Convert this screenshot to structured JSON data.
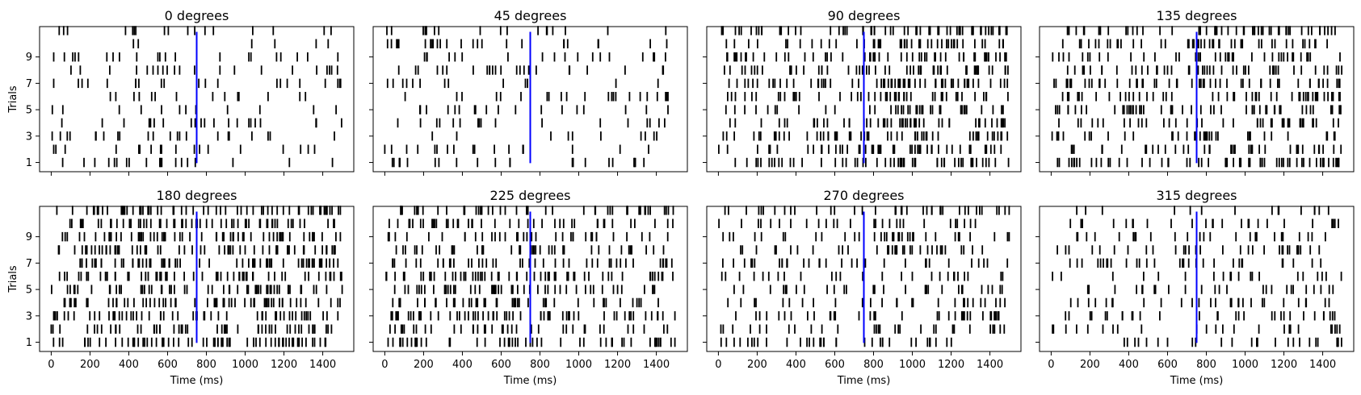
{
  "colors": {
    "spike": "#000000",
    "marker": "#0000ff",
    "axes": "#000000",
    "background": "#ffffff"
  },
  "chart_data": {
    "type": "raster",
    "grid": false,
    "x_ticks": [
      "0",
      "200",
      "400",
      "600",
      "800",
      "1000",
      "1200",
      "1400"
    ],
    "y_ticks": [
      "1",
      "3",
      "5",
      "7",
      "9"
    ],
    "xlim": [
      -60,
      1560
    ],
    "ylim": [
      0.3,
      11.3
    ],
    "xlabel": "Time (ms)",
    "ylabel": "Trials",
    "marker_time": 750,
    "trials": [
      1,
      2,
      3,
      4,
      5,
      6,
      7,
      8,
      9,
      10,
      11
    ],
    "panels": [
      {
        "title": "0 degrees",
        "rate_pre": 16,
        "rate_post": 10
      },
      {
        "title": "45 degrees",
        "rate_pre": 14,
        "rate_post": 11
      },
      {
        "title": "90 degrees",
        "rate_pre": 20,
        "rate_post": 40
      },
      {
        "title": "135 degrees",
        "rate_pre": 22,
        "rate_post": 36
      },
      {
        "title": "180 degrees",
        "rate_pre": 34,
        "rate_post": 40
      },
      {
        "title": "225 degrees",
        "rate_pre": 30,
        "rate_post": 24
      },
      {
        "title": "270 degrees",
        "rate_pre": 20,
        "rate_post": 26
      },
      {
        "title": "315 degrees",
        "rate_pre": 15,
        "rate_post": 20
      }
    ]
  }
}
